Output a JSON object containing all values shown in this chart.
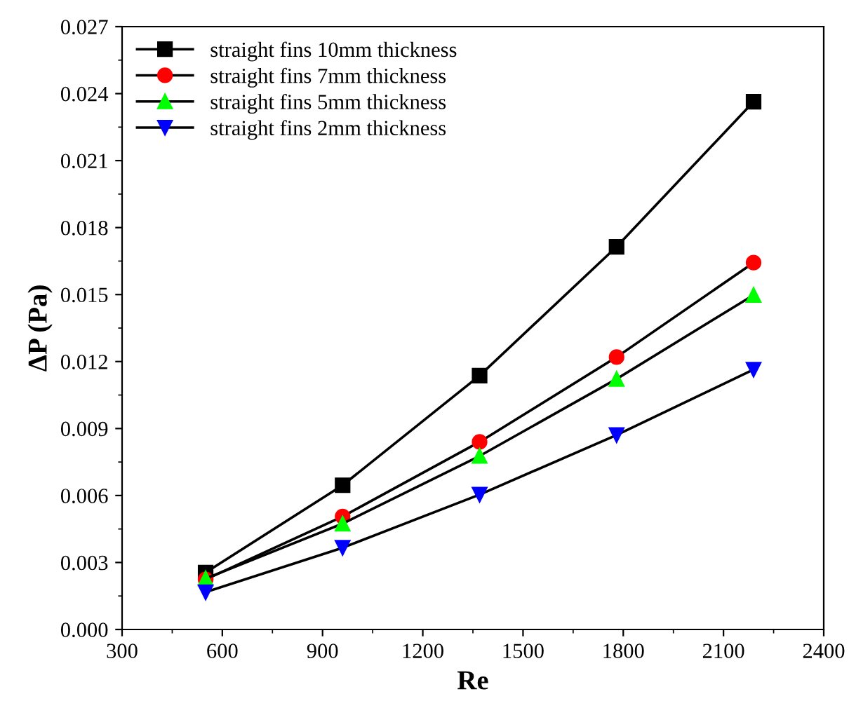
{
  "chart_data": {
    "type": "line",
    "xlabel": "Re",
    "ylabel": "ΔP (Pa)",
    "x": [
      550,
      960,
      1370,
      1780,
      2190
    ],
    "series": [
      {
        "name": "straight fins 10mm thickness",
        "color": "#000000",
        "marker": "square",
        "values": [
          0.00255,
          0.00646,
          0.01137,
          0.01714,
          0.02364
        ]
      },
      {
        "name": "straight fins 7mm thickness",
        "color": "#ff0000",
        "marker": "circle",
        "values": [
          0.00224,
          0.00506,
          0.0084,
          0.0122,
          0.01643
        ]
      },
      {
        "name": "straight fins 5mm thickness",
        "color": "#00ff00",
        "marker": "triangle",
        "values": [
          0.00228,
          0.00474,
          0.00777,
          0.01122,
          0.01498
        ]
      },
      {
        "name": "straight fins 2mm thickness",
        "color": "#0000ff",
        "marker": "triangle_down",
        "values": [
          0.00167,
          0.00366,
          0.00604,
          0.00871,
          0.01164
        ]
      }
    ],
    "xlim": [
      300,
      2400
    ],
    "xticks": [
      300,
      600,
      900,
      1200,
      1500,
      1800,
      2100,
      2400
    ],
    "ylim": [
      0,
      0.027
    ],
    "yticks": [
      {
        "value": 0,
        "label": "0.000"
      },
      {
        "value": 0.003,
        "label": "0.003"
      },
      {
        "value": 0.006,
        "label": "0.006"
      },
      {
        "value": 0.009,
        "label": "0.009"
      },
      {
        "value": 0.012,
        "label": "0.012"
      },
      {
        "value": 0.015,
        "label": "0.015"
      },
      {
        "value": 0.018,
        "label": "0.018"
      },
      {
        "value": 0.021,
        "label": "0.021"
      },
      {
        "value": 0.024,
        "label": "0.024"
      },
      {
        "value": 0.027,
        "label": "0.027"
      }
    ],
    "legend": "top left",
    "grid": false,
    "line_style": "solid"
  }
}
